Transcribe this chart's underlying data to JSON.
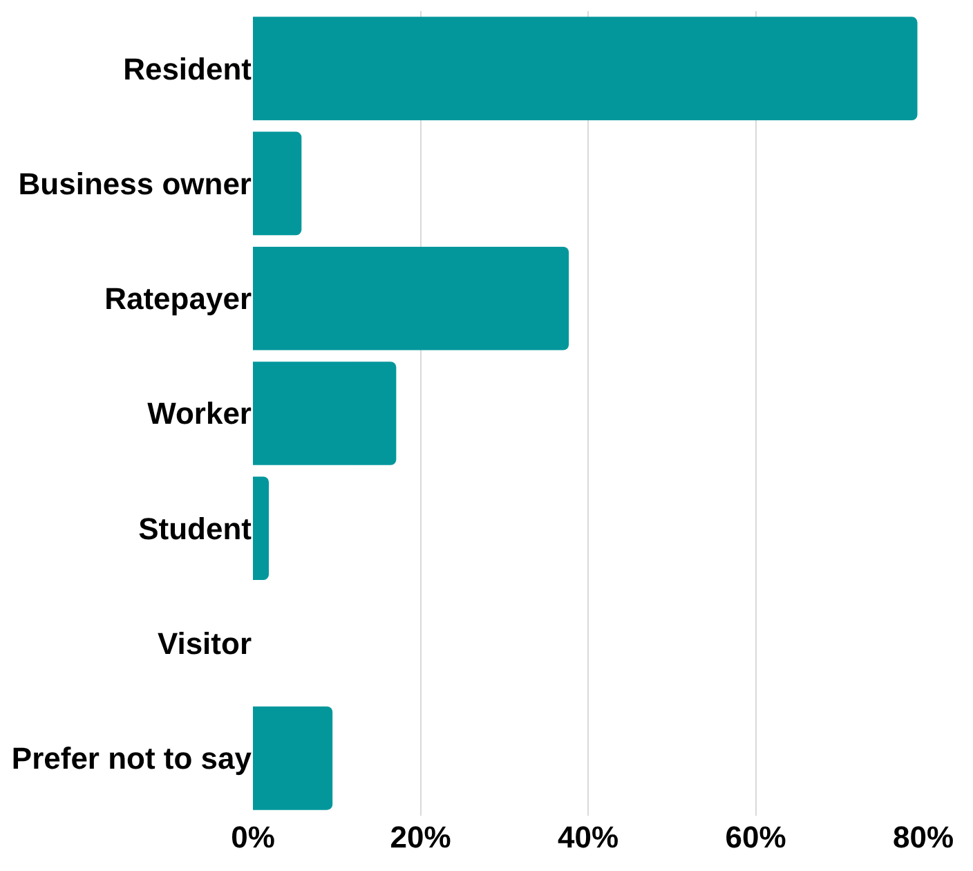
{
  "chart_data": {
    "type": "bar",
    "orientation": "horizontal",
    "categories": [
      "Resident",
      "Business owner",
      "Ratepayer",
      "Worker",
      "Student",
      "Visitor",
      "Prefer not to say"
    ],
    "values": [
      79.3,
      5.8,
      37.7,
      17.1,
      1.9,
      0,
      9.5
    ],
    "color": "#03979c",
    "xlim": [
      0,
      80
    ],
    "xticks": [
      {
        "value": 0,
        "label": "0%"
      },
      {
        "value": 20,
        "label": "20%"
      },
      {
        "value": 40,
        "label": "40%"
      },
      {
        "value": 60,
        "label": "60%"
      },
      {
        "value": 80,
        "label": "80%"
      }
    ],
    "grid": "x"
  }
}
